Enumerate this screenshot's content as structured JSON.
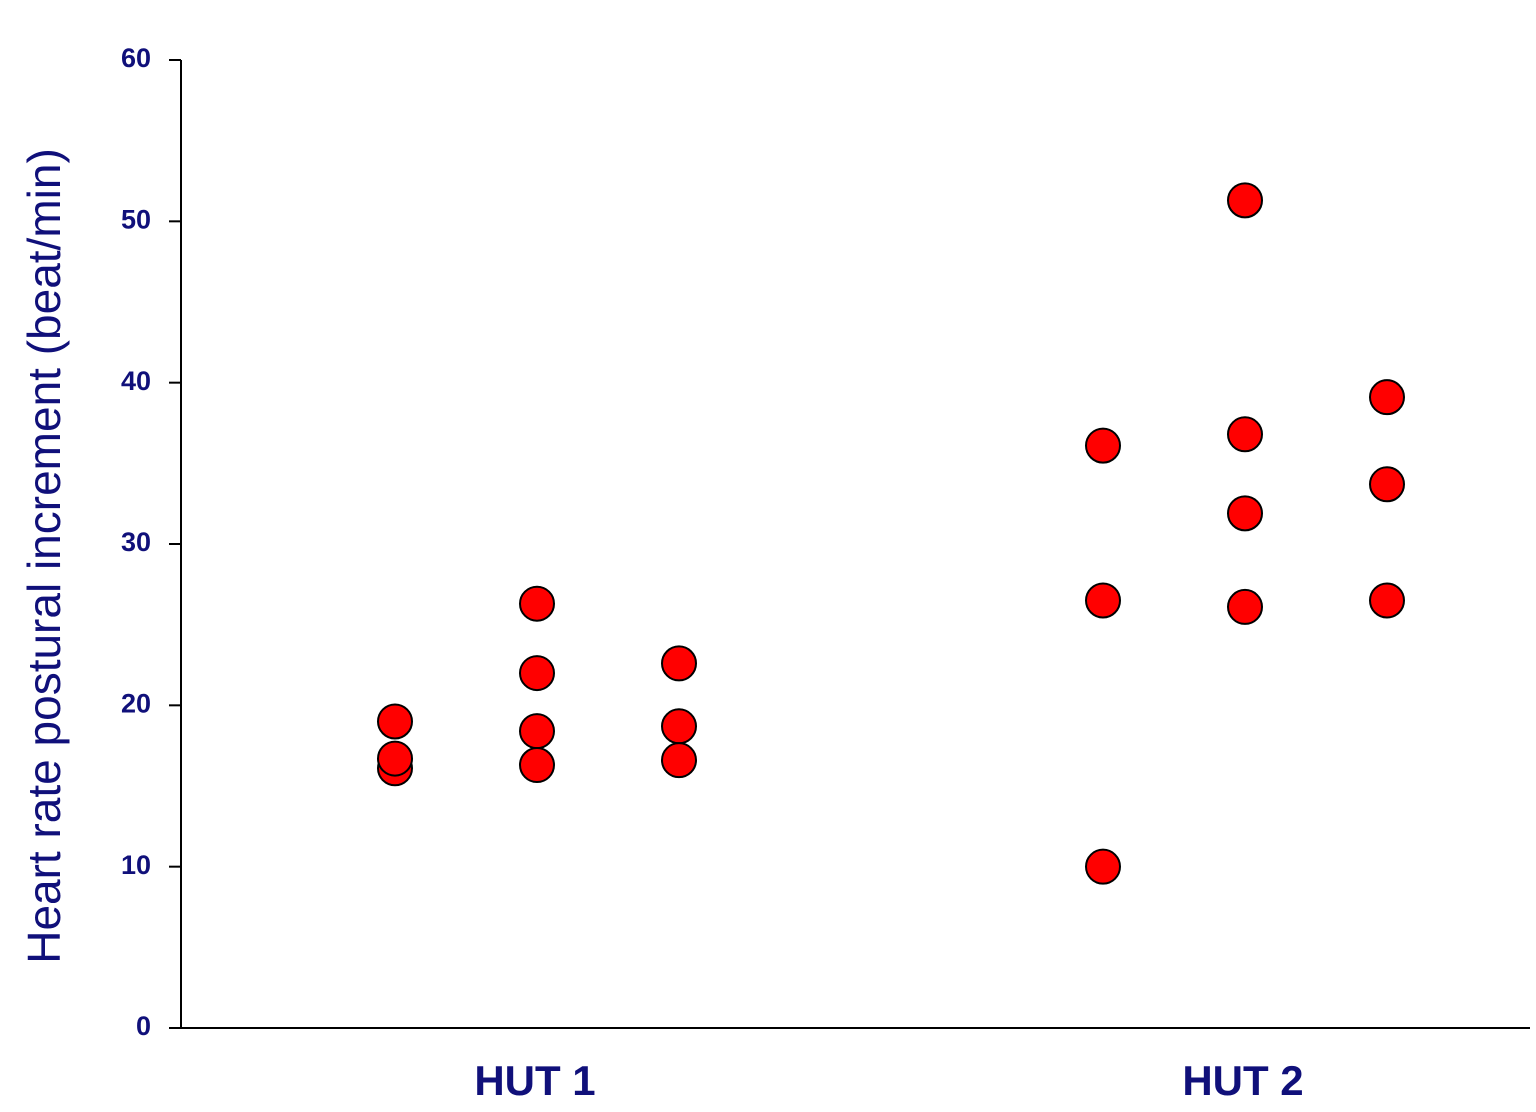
{
  "chart_data": {
    "type": "strip",
    "y_label": "Heart rate postural increment (beat/min)",
    "categories": [
      "HUT 1",
      "HUT 2"
    ],
    "values": [
      [
        [
          16.1,
          16.7,
          19.0
        ],
        [
          26.3,
          22.0,
          18.4,
          16.3
        ],
        [
          22.6,
          18.7,
          16.6
        ]
      ],
      [
        [
          36.1,
          26.5,
          10.0
        ],
        [
          51.3,
          36.8,
          31.9,
          26.1
        ],
        [
          39.1,
          33.7,
          26.5
        ]
      ]
    ],
    "color": "#ff0000",
    "ylim": [
      0,
      60
    ],
    "yticks": [
      0,
      10,
      20,
      30,
      40,
      50,
      60
    ]
  }
}
